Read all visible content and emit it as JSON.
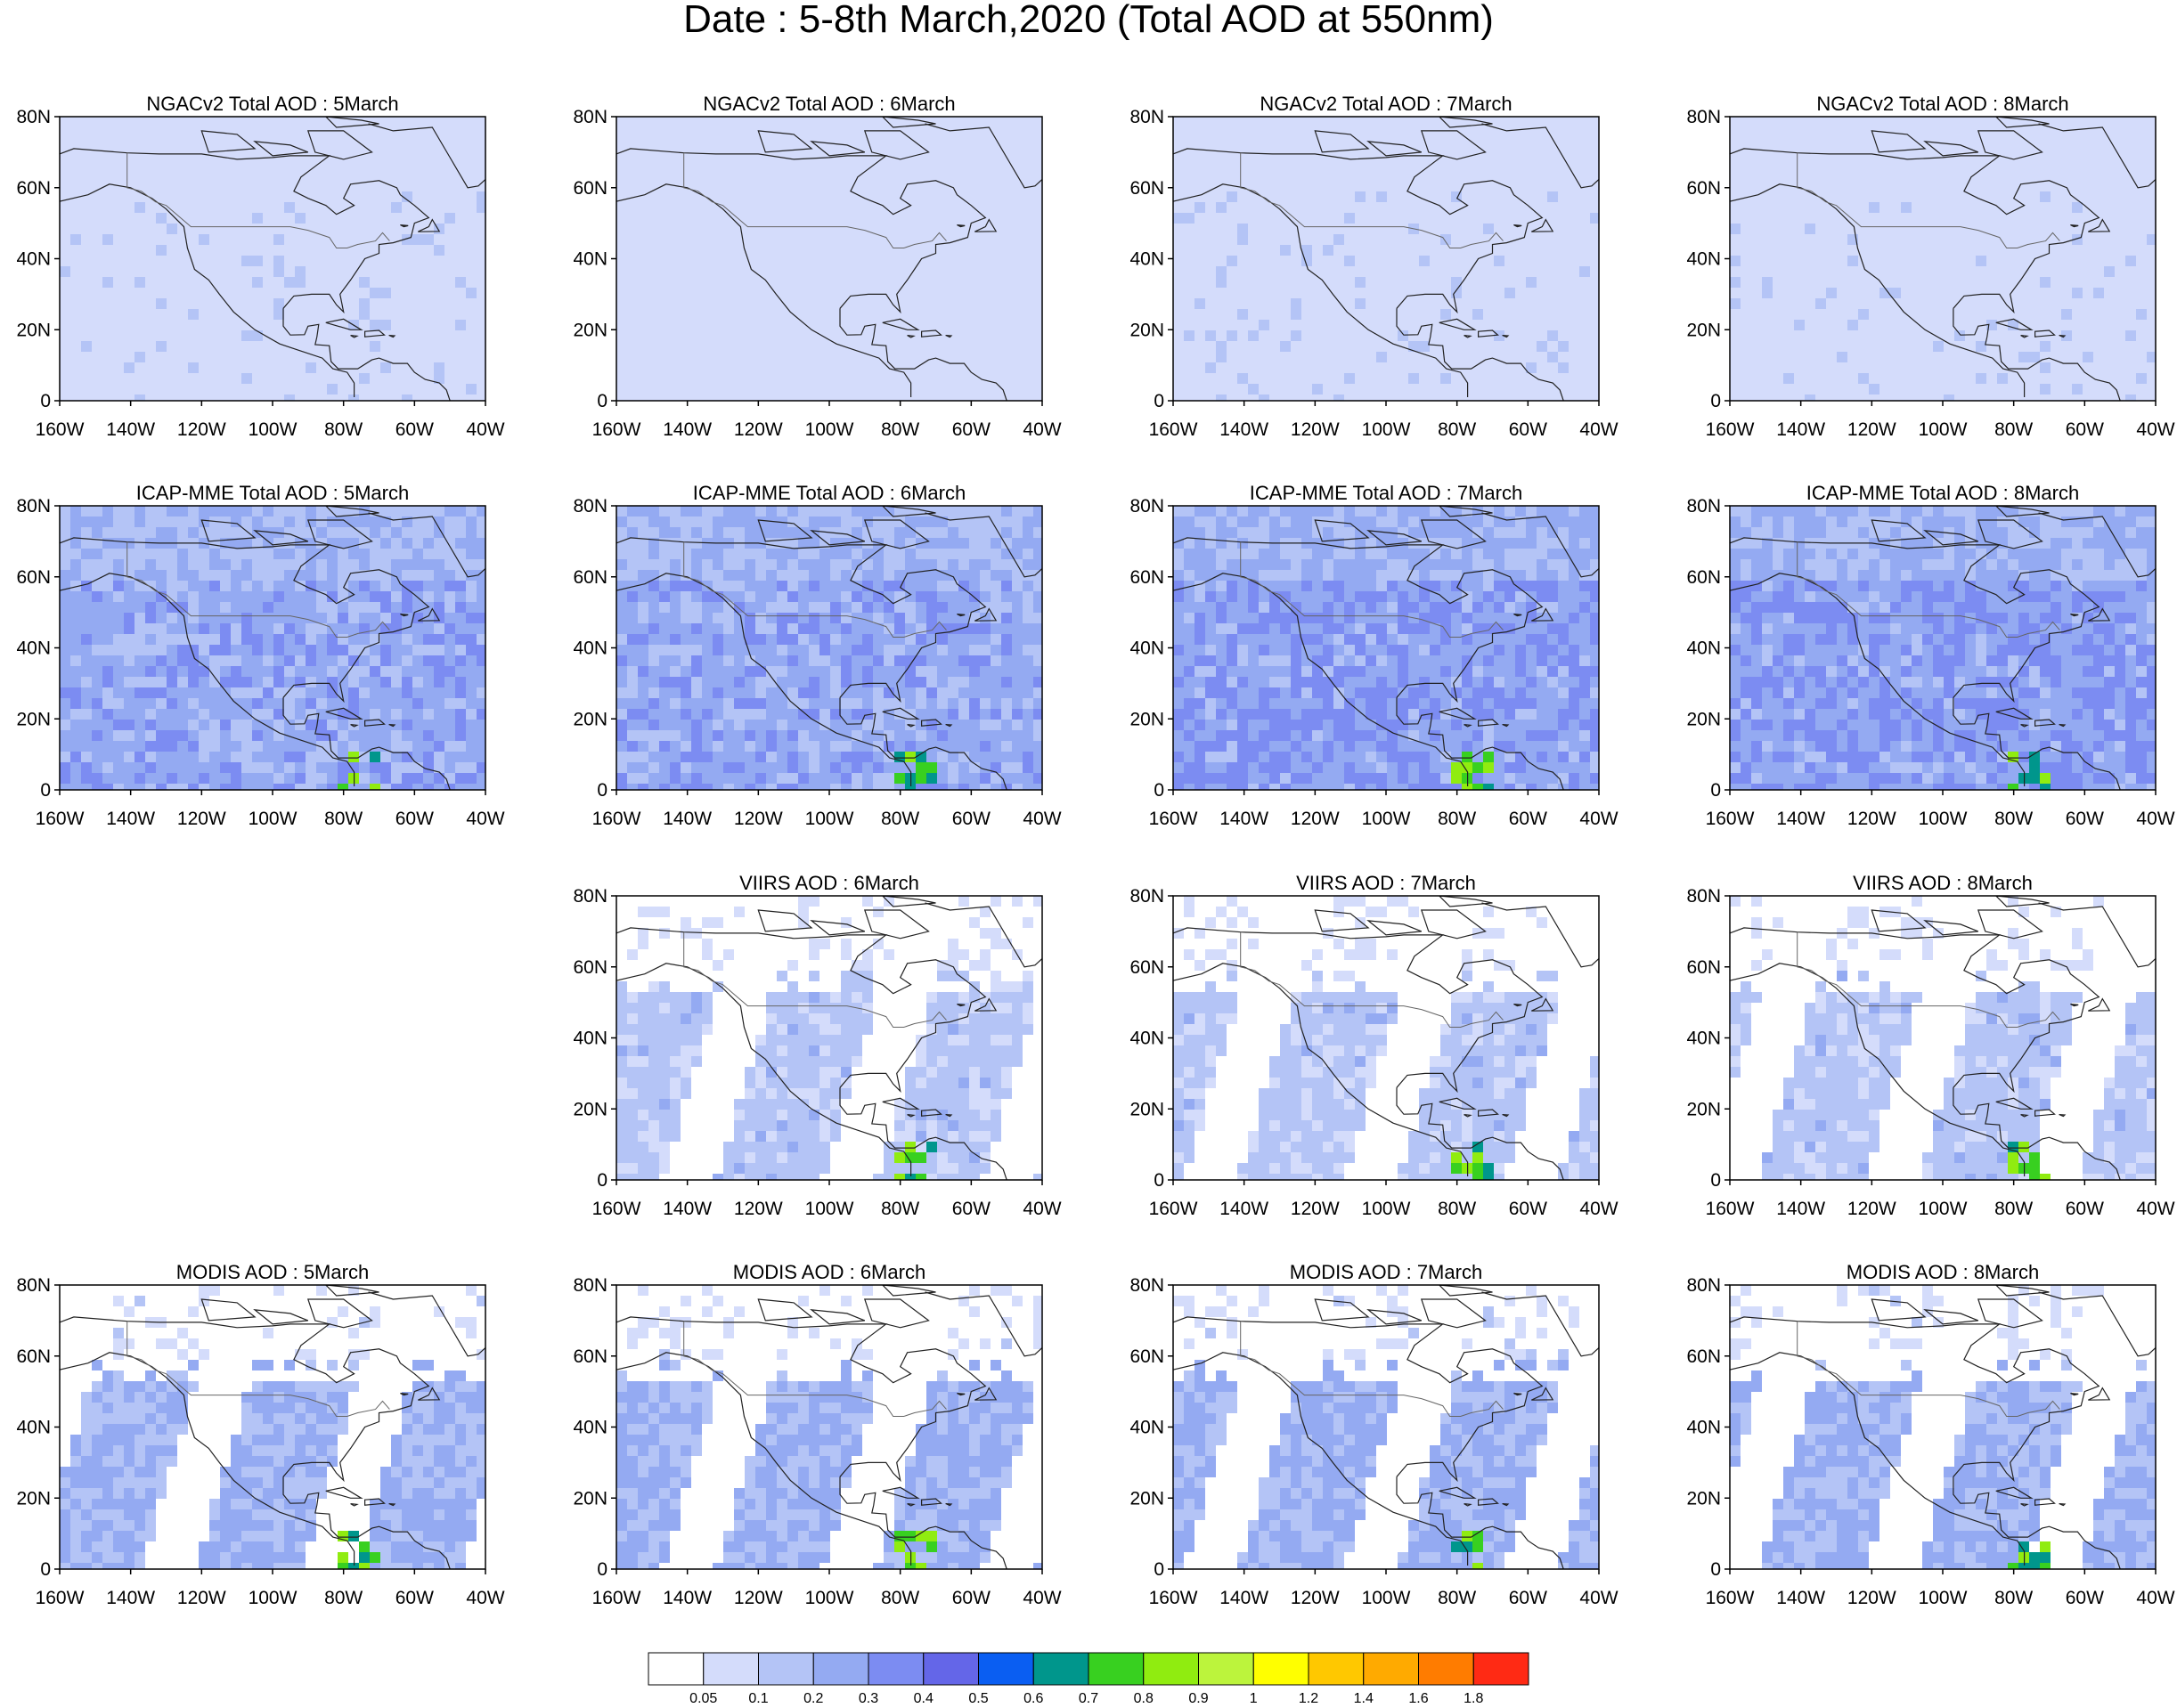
{
  "figure_title": "Date : 5-8th March,2020 (Total AOD at 550nm)",
  "x_tick_labels": [
    "160W",
    "140W",
    "120W",
    "100W",
    "80W",
    "60W",
    "40W"
  ],
  "y_tick_labels": [
    "80N",
    "60N",
    "40N",
    "20N",
    "0"
  ],
  "rows": [
    {
      "product": "NGACv2",
      "panels": [
        {
          "title": "NGACv2 Total AOD : 5March",
          "intensity": 0.2
        },
        {
          "title": "NGACv2 Total AOD : 6March",
          "intensity": 0.15
        },
        {
          "title": "NGACv2 Total AOD : 7March",
          "intensity": 0.2
        },
        {
          "title": "NGACv2 Total AOD : 8March",
          "intensity": 0.2
        }
      ]
    },
    {
      "product": "ICAP-MME",
      "panels": [
        {
          "title": "ICAP-MME Total AOD : 5March",
          "intensity": 0.45
        },
        {
          "title": "ICAP-MME Total AOD : 6March",
          "intensity": 0.45
        },
        {
          "title": "ICAP-MME Total AOD : 7March",
          "intensity": 0.5
        },
        {
          "title": "ICAP-MME Total AOD : 8March",
          "intensity": 0.5
        }
      ]
    },
    {
      "product": "VIIRS",
      "panels": [
        null,
        {
          "title": "VIIRS AOD : 6March",
          "intensity": 0.3
        },
        {
          "title": "VIIRS AOD : 7March",
          "intensity": 0.3
        },
        {
          "title": "VIIRS AOD : 8March",
          "intensity": 0.3
        }
      ]
    },
    {
      "product": "MODIS",
      "panels": [
        {
          "title": "MODIS AOD : 5March",
          "intensity": 0.4
        },
        {
          "title": "MODIS AOD : 6March",
          "intensity": 0.4
        },
        {
          "title": "MODIS AOD : 7March",
          "intensity": 0.4
        },
        {
          "title": "MODIS AOD : 8March",
          "intensity": 0.4
        }
      ]
    }
  ],
  "map_extent": {
    "lon": [
      -160,
      -40
    ],
    "lat": [
      0,
      80
    ]
  },
  "colorbar": {
    "colors": [
      "#ffffff",
      "#d4dcfb",
      "#b4c4f6",
      "#94aaf2",
      "#7c8cf2",
      "#6466e8",
      "#0a5ef2",
      "#00968c",
      "#38d020",
      "#90ec10",
      "#bcf43c",
      "#ffff00",
      "#ffc800",
      "#ffaa00",
      "#ff7c00",
      "#ff2a14"
    ],
    "labels": [
      "0.05",
      "0.1",
      "0.2",
      "0.3",
      "0.4",
      "0.5",
      "0.6",
      "0.7",
      "0.8",
      "0.9",
      "1",
      "1.2",
      "1.4",
      "1.6",
      "1.8"
    ]
  }
}
